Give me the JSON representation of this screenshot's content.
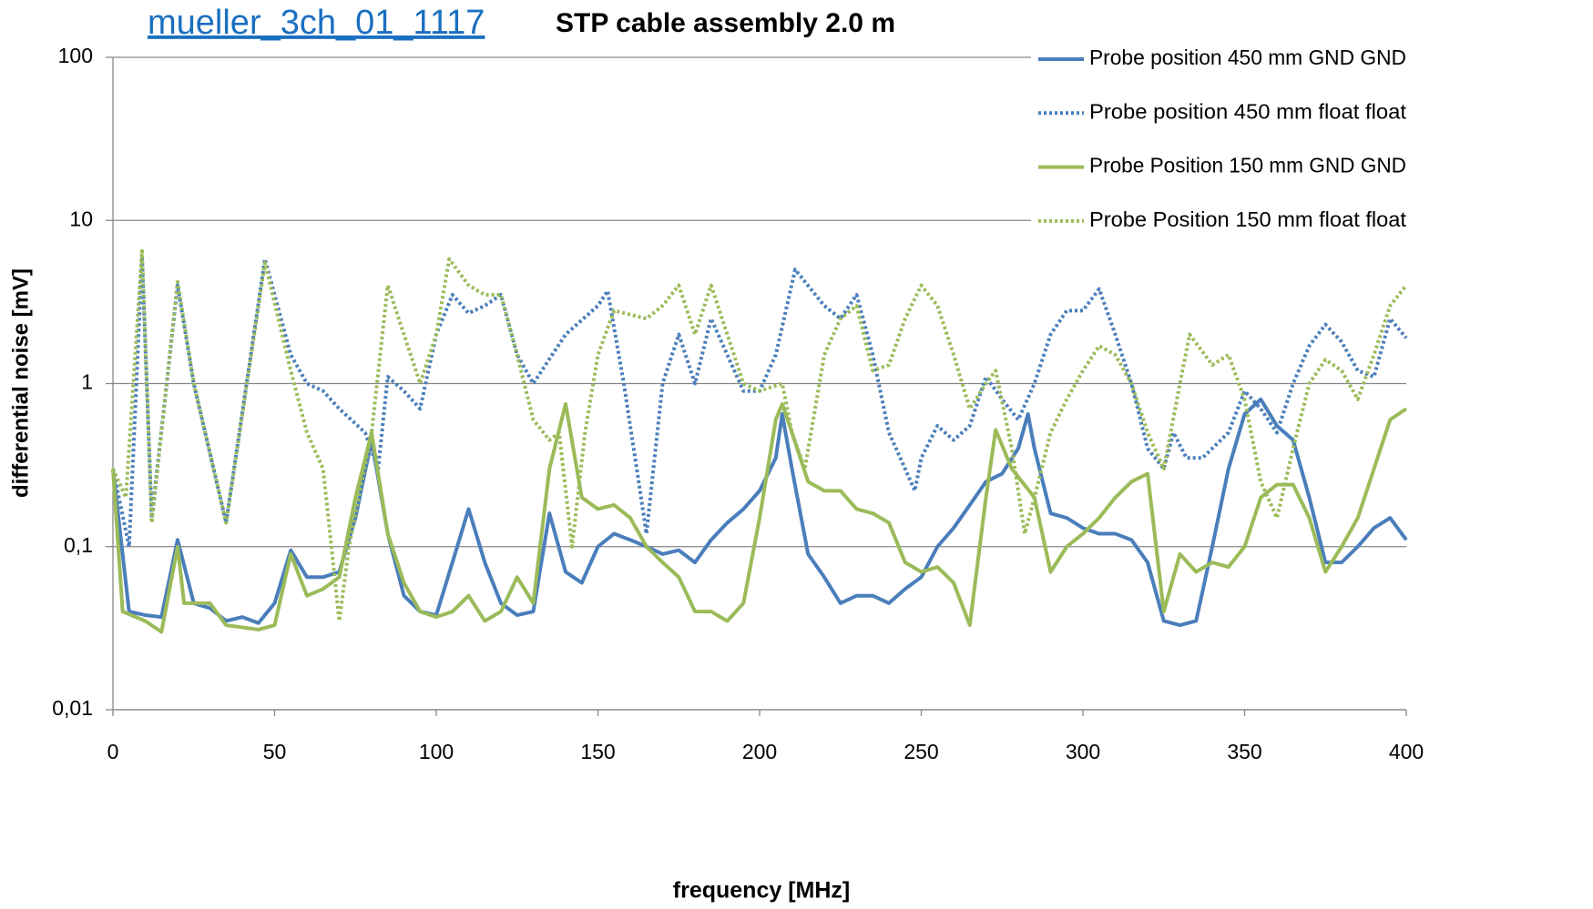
{
  "chart_data": {
    "type": "line",
    "title_link": "mueller_3ch_01_1117",
    "title": "STP cable assembly 2.0 m",
    "xlabel": "frequency [MHz]",
    "ylabel": "differential noise [mV]",
    "xlim": [
      0,
      400
    ],
    "xticks": [
      0,
      50,
      100,
      150,
      200,
      250,
      300,
      350,
      400
    ],
    "ylim": [
      0.01,
      100
    ],
    "yscale": "log",
    "yticks": [
      {
        "value": 0.01,
        "label": "0,01"
      },
      {
        "value": 0.1,
        "label": "0,1"
      },
      1,
      10,
      100
    ],
    "grid": true,
    "legend": "upper right",
    "series": [
      {
        "name": "Probe position 450 mm GND GND",
        "color": "#4a7ebb",
        "dash": "solid",
        "x": [
          0,
          5,
          10,
          15,
          20,
          25,
          30,
          35,
          40,
          45,
          50,
          55,
          60,
          65,
          70,
          75,
          80,
          85,
          90,
          95,
          100,
          105,
          110,
          115,
          120,
          125,
          130,
          135,
          140,
          145,
          150,
          155,
          160,
          165,
          170,
          175,
          180,
          185,
          190,
          195,
          200,
          205,
          207,
          210,
          215,
          220,
          225,
          230,
          235,
          240,
          245,
          250,
          255,
          260,
          265,
          270,
          275,
          280,
          283,
          285,
          290,
          295,
          300,
          305,
          310,
          315,
          320,
          325,
          330,
          335,
          340,
          345,
          350,
          355,
          360,
          365,
          370,
          375,
          380,
          385,
          390,
          395,
          400
        ],
        "values": [
          0.3,
          0.04,
          0.038,
          0.037,
          0.11,
          0.045,
          0.042,
          0.035,
          0.037,
          0.034,
          0.045,
          0.095,
          0.065,
          0.065,
          0.07,
          0.15,
          0.45,
          0.12,
          0.05,
          0.04,
          0.038,
          0.08,
          0.17,
          0.08,
          0.045,
          0.038,
          0.04,
          0.16,
          0.07,
          0.06,
          0.1,
          0.12,
          0.11,
          0.1,
          0.09,
          0.095,
          0.08,
          0.11,
          0.14,
          0.17,
          0.22,
          0.35,
          0.65,
          0.3,
          0.09,
          0.065,
          0.045,
          0.05,
          0.05,
          0.045,
          0.055,
          0.065,
          0.1,
          0.13,
          0.18,
          0.25,
          0.28,
          0.4,
          0.65,
          0.4,
          0.16,
          0.15,
          0.13,
          0.12,
          0.12,
          0.11,
          0.08,
          0.035,
          0.033,
          0.035,
          0.1,
          0.3,
          0.65,
          0.8,
          0.55,
          0.45,
          0.2,
          0.08,
          0.08,
          0.1,
          0.13,
          0.15,
          0.11
        ]
      },
      {
        "name": "Probe position 450 mm float float",
        "color": "#4a7ebb",
        "dash": "dotted",
        "x": [
          0,
          5,
          9,
          12,
          20,
          25,
          35,
          47,
          55,
          60,
          65,
          70,
          78,
          82,
          85,
          90,
          95,
          100,
          105,
          110,
          115,
          120,
          125,
          130,
          140,
          150,
          153,
          158,
          162,
          165,
          170,
          175,
          180,
          185,
          190,
          195,
          200,
          205,
          211,
          220,
          225,
          230,
          235,
          240,
          245,
          248,
          250,
          255,
          260,
          265,
          270,
          275,
          280,
          285,
          290,
          295,
          300,
          305,
          310,
          315,
          320,
          325,
          328,
          332,
          337,
          345,
          350,
          355,
          360,
          365,
          370,
          375,
          380,
          385,
          390,
          395,
          400
        ],
        "values": [
          0.3,
          0.1,
          6,
          0.15,
          4,
          1,
          0.14,
          5.8,
          1.5,
          1,
          0.9,
          0.7,
          0.5,
          0.3,
          1.1,
          0.9,
          0.7,
          2,
          3.5,
          2.7,
          3,
          3.5,
          1.5,
          1,
          2,
          3,
          3.7,
          1,
          0.3,
          0.12,
          1,
          2,
          1,
          2.5,
          1.5,
          0.9,
          0.9,
          1.5,
          5,
          3,
          2.5,
          3.5,
          1.5,
          0.5,
          0.3,
          0.22,
          0.35,
          0.55,
          0.45,
          0.55,
          1.1,
          0.8,
          0.6,
          1,
          2,
          2.8,
          2.8,
          3.8,
          2,
          1,
          0.4,
          0.3,
          0.5,
          0.35,
          0.35,
          0.5,
          0.9,
          0.7,
          0.5,
          1,
          1.7,
          2.3,
          1.8,
          1.2,
          1.1,
          2.5,
          1.9
        ]
      },
      {
        "name": "Probe Position 150 mm GND GND",
        "color": "#9bbb59",
        "dash": "solid",
        "x": [
          0,
          3,
          10,
          15,
          20,
          22,
          25,
          30,
          35,
          40,
          45,
          50,
          55,
          60,
          65,
          70,
          75,
          80,
          85,
          90,
          95,
          100,
          105,
          110,
          115,
          120,
          125,
          130,
          135,
          140,
          145,
          150,
          155,
          160,
          165,
          170,
          175,
          180,
          185,
          190,
          195,
          200,
          205,
          207,
          210,
          215,
          220,
          225,
          230,
          235,
          240,
          245,
          250,
          255,
          260,
          265,
          270,
          273,
          278,
          285,
          290,
          295,
          300,
          305,
          310,
          315,
          320,
          325,
          330,
          335,
          340,
          345,
          350,
          355,
          360,
          365,
          370,
          375,
          380,
          385,
          390,
          395,
          400
        ],
        "values": [
          0.3,
          0.04,
          0.035,
          0.03,
          0.1,
          0.045,
          0.045,
          0.045,
          0.033,
          0.032,
          0.031,
          0.033,
          0.09,
          0.05,
          0.055,
          0.065,
          0.2,
          0.5,
          0.12,
          0.06,
          0.04,
          0.037,
          0.04,
          0.05,
          0.035,
          0.04,
          0.065,
          0.045,
          0.3,
          0.75,
          0.2,
          0.17,
          0.18,
          0.15,
          0.1,
          0.08,
          0.065,
          0.04,
          0.04,
          0.035,
          0.045,
          0.15,
          0.6,
          0.75,
          0.5,
          0.25,
          0.22,
          0.22,
          0.17,
          0.16,
          0.14,
          0.08,
          0.07,
          0.075,
          0.06,
          0.033,
          0.2,
          0.52,
          0.3,
          0.2,
          0.07,
          0.1,
          0.12,
          0.15,
          0.2,
          0.25,
          0.28,
          0.04,
          0.09,
          0.07,
          0.08,
          0.075,
          0.1,
          0.2,
          0.24,
          0.24,
          0.15,
          0.07,
          0.1,
          0.15,
          0.3,
          0.6,
          0.7
        ]
      },
      {
        "name": "Probe Position 150 mm float float",
        "color": "#9bbb59",
        "dash": "dotted",
        "x": [
          0,
          4,
          9,
          12,
          20,
          25,
          35,
          47,
          55,
          60,
          65,
          70,
          73,
          80,
          85,
          90,
          95,
          100,
          104,
          110,
          115,
          120,
          125,
          130,
          135,
          138,
          142,
          146,
          150,
          155,
          165,
          170,
          175,
          180,
          185,
          190,
          195,
          200,
          207,
          210,
          214,
          220,
          225,
          230,
          235,
          240,
          245,
          250,
          255,
          260,
          265,
          270,
          273,
          278,
          282,
          285,
          290,
          295,
          300,
          305,
          310,
          315,
          320,
          325,
          330,
          333,
          340,
          345,
          350,
          355,
          360,
          365,
          370,
          375,
          380,
          385,
          390,
          395,
          400
        ],
        "values": [
          0.3,
          0.2,
          6.5,
          0.14,
          4.2,
          1,
          0.14,
          5.5,
          1.2,
          0.5,
          0.3,
          0.035,
          0.1,
          0.5,
          4,
          2,
          1,
          2,
          5.8,
          4,
          3.5,
          3.5,
          1.5,
          0.6,
          0.45,
          0.5,
          0.1,
          0.5,
          1.5,
          2.8,
          2.5,
          3,
          4,
          2,
          4,
          2,
          1,
          0.9,
          1,
          0.5,
          0.3,
          1.5,
          2.5,
          3,
          1.2,
          1.3,
          2.5,
          4,
          3,
          1.5,
          0.7,
          1,
          1.2,
          0.4,
          0.12,
          0.2,
          0.5,
          0.8,
          1.2,
          1.7,
          1.5,
          1,
          0.5,
          0.3,
          1,
          2,
          1.3,
          1.5,
          0.8,
          0.25,
          0.15,
          0.4,
          1,
          1.4,
          1.2,
          0.8,
          1.5,
          3,
          4
        ]
      }
    ]
  }
}
